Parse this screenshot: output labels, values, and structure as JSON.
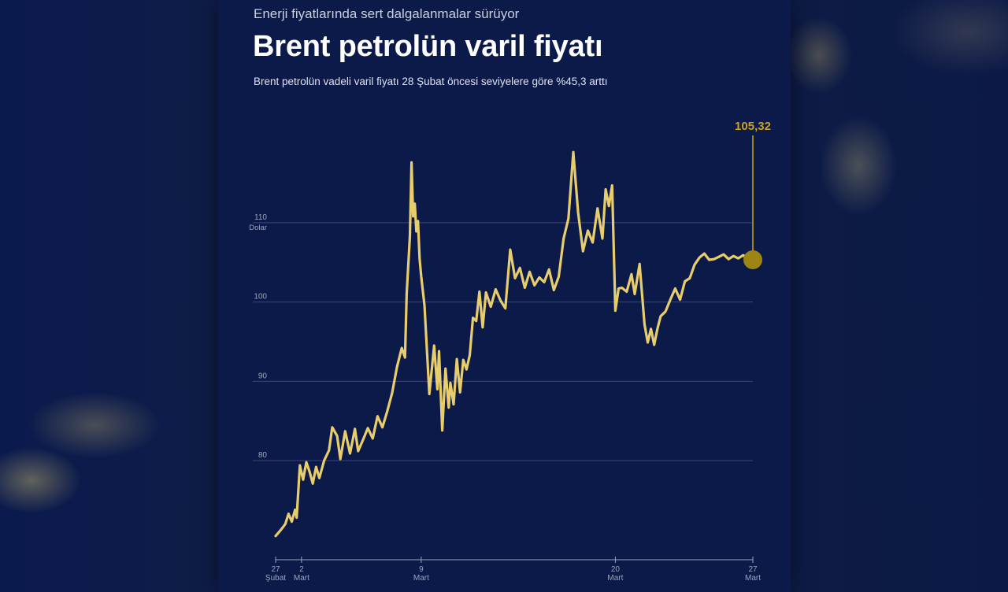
{
  "header": {
    "kicker": "Enerji fiyatlarında sert dalgalanmalar sürüyor",
    "title": "Brent petrolün varil fiyatı",
    "subtitle": "Brent petrolün vadeli varil fiyatı 28 Şubat öncesi seviyelere göre %45,3 arttı"
  },
  "colors": {
    "background": "#0c1a4a",
    "line": "#e7cd6b",
    "end_marker": "#9c8514",
    "end_label": "#c9a21c",
    "grid": "#3a4676",
    "axis_text": "#9aa3bf"
  },
  "chart_data": {
    "type": "line",
    "title": "Brent petrolün varil fiyatı",
    "subtitle": "Brent petrolün vadeli varil fiyatı 28 Şubat öncesi seviyelere göre %45,3 arttı",
    "ylabel": "Dolar",
    "ylim": [
      67.5,
      121.6
    ],
    "yticks": [
      80,
      90,
      100,
      110
    ],
    "ytick_labels": [
      "80",
      "90",
      "100",
      "110"
    ],
    "ytick_unit": "Dolar",
    "xlim": [
      0,
      29.5
    ],
    "xticks": [
      {
        "x": 0,
        "label1": "27",
        "label2": "Şubat"
      },
      {
        "x": 1.6,
        "label1": "2",
        "label2": "Mart"
      },
      {
        "x": 9,
        "label1": "9",
        "label2": "Mart"
      },
      {
        "x": 21,
        "label1": "20",
        "label2": "Mart"
      },
      {
        "x": 29.5,
        "label1": "27",
        "label2": "Mart"
      }
    ],
    "grid": true,
    "end_annotation": "105,32",
    "series": [
      {
        "name": "",
        "x": [
          0,
          0.3,
          0.6,
          0.8,
          1.0,
          1.2,
          1.3,
          1.5,
          1.7,
          1.9,
          2.1,
          2.3,
          2.5,
          2.7,
          3.0,
          3.3,
          3.5,
          3.8,
          4.0,
          4.3,
          4.6,
          4.9,
          5.1,
          5.4,
          5.7,
          6.0,
          6.3,
          6.6,
          6.9,
          7.2,
          7.5,
          7.8,
          8.0,
          8.1,
          8.3,
          8.4,
          8.5,
          8.6,
          8.7,
          8.8,
          8.9,
          9.0,
          9.2,
          9.5,
          9.8,
          10.0,
          10.1,
          10.3,
          10.5,
          10.7,
          10.8,
          11.0,
          11.2,
          11.4,
          11.6,
          11.8,
          12.0,
          12.2,
          12.4,
          12.6,
          12.8,
          13.0,
          13.3,
          13.6,
          13.9,
          14.2,
          14.5,
          14.8,
          15.1,
          15.4,
          15.7,
          16.0,
          16.3,
          16.6,
          16.9,
          17.2,
          17.5,
          17.8,
          18.1,
          18.4,
          18.7,
          19.0,
          19.3,
          19.6,
          19.9,
          20.2,
          20.4,
          20.6,
          20.8,
          21.0,
          21.2,
          21.4,
          21.7,
          22.0,
          22.2,
          22.5,
          22.8,
          23.0,
          23.2,
          23.4,
          23.6,
          23.8,
          24.1,
          24.4,
          24.7,
          25.0,
          25.3,
          25.6,
          25.9,
          26.2,
          26.5,
          26.8,
          27.1,
          27.4,
          27.7,
          28.0,
          28.3,
          28.6,
          28.9,
          29.2,
          29.5
        ],
        "y": [
          70.5,
          71.2,
          72.0,
          73.3,
          72.3,
          73.8,
          72.8,
          79.4,
          77.6,
          79.8,
          78.6,
          77.1,
          79.2,
          77.8,
          80.0,
          81.3,
          84.2,
          83.1,
          80.2,
          83.7,
          80.9,
          84.0,
          81.2,
          82.6,
          84.1,
          82.8,
          85.6,
          84.2,
          86.2,
          88.5,
          91.8,
          94.2,
          93.0,
          101.0,
          108.3,
          117.6,
          110.8,
          112.4,
          108.9,
          110.2,
          105.5,
          103.2,
          99.6,
          88.4,
          94.5,
          89.0,
          93.8,
          83.8,
          91.6,
          86.7,
          89.8,
          87.1,
          92.8,
          88.6,
          92.7,
          91.5,
          93.3,
          98.0,
          97.6,
          101.3,
          96.8,
          101.2,
          99.4,
          101.6,
          100.2,
          99.2,
          106.6,
          103.0,
          104.3,
          101.8,
          103.8,
          102.1,
          103.1,
          102.5,
          104.1,
          101.5,
          103.2,
          108.0,
          110.5,
          118.9,
          111.3,
          106.4,
          109.0,
          107.5,
          111.8,
          108.0,
          114.2,
          112.1,
          114.7,
          98.9,
          101.7,
          101.8,
          101.3,
          103.5,
          101.0,
          104.8,
          97.2,
          94.9,
          96.6,
          94.6,
          96.6,
          98.2,
          98.8,
          100.3,
          101.7,
          100.3,
          102.6,
          103.0,
          104.7,
          105.6,
          106.1,
          105.32,
          105.4,
          105.7,
          106.0,
          105.4,
          105.8,
          105.5,
          105.9,
          105.6,
          105.32
        ]
      }
    ]
  }
}
